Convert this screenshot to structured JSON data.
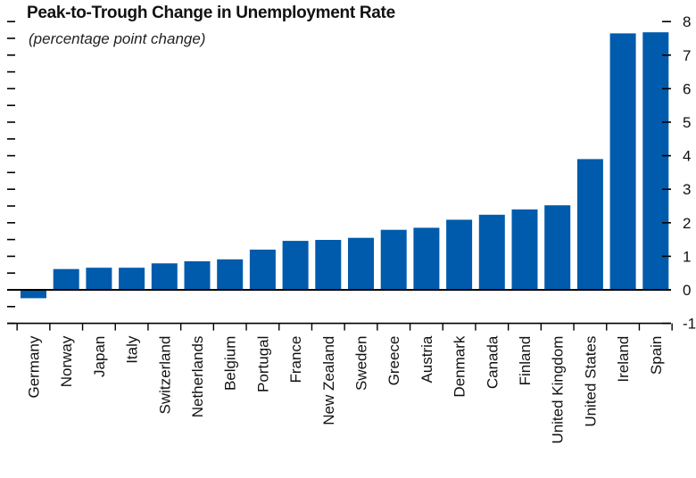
{
  "chart_data": {
    "type": "bar",
    "title": "Peak-to-Trough Change in Unemployment Rate",
    "subtitle": "(percentage point change)",
    "categories": [
      "Germany",
      "Norway",
      "Japan",
      "Italy",
      "Switzerland",
      "Netherlands",
      "Belgium",
      "Portugal",
      "France",
      "New Zealand",
      "Sweden",
      "Greece",
      "Austria",
      "Denmark",
      "Canada",
      "Finland",
      "United Kingdom",
      "United States",
      "Ireland",
      "Spain"
    ],
    "values": [
      -0.25,
      0.62,
      0.66,
      0.66,
      0.79,
      0.85,
      0.91,
      1.2,
      1.46,
      1.49,
      1.55,
      1.79,
      1.85,
      2.09,
      2.24,
      2.4,
      2.52,
      3.9,
      7.65,
      7.68
    ],
    "yticks": [
      -1,
      0,
      1,
      2,
      3,
      4,
      5,
      6,
      7,
      8
    ],
    "ylim": [
      -1,
      8
    ],
    "bar_color": "#005BAC",
    "axis_position": "right",
    "grid": false
  }
}
